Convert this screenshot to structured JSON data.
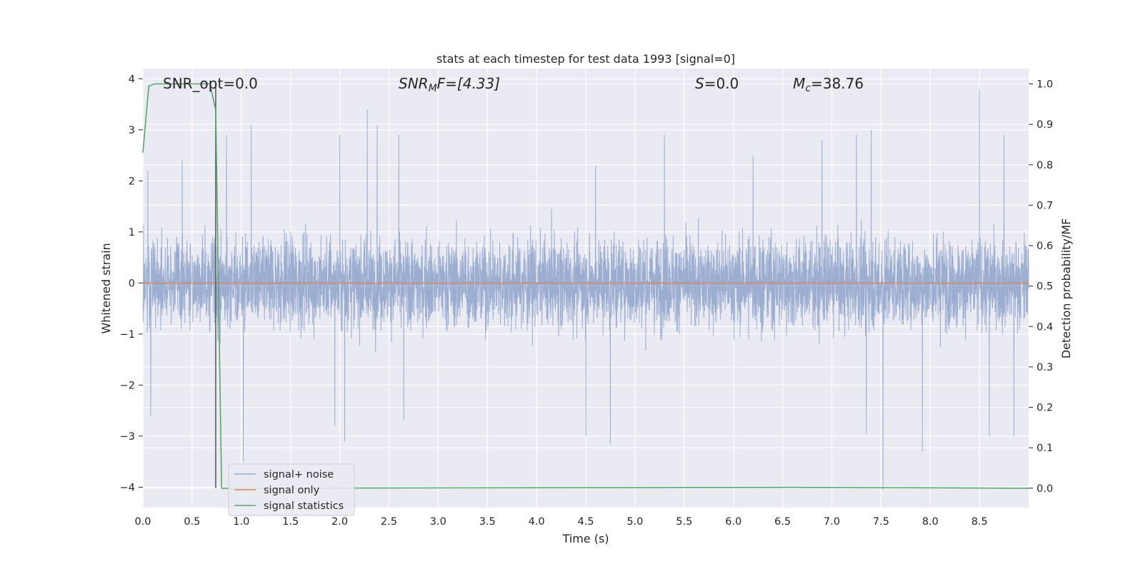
{
  "chart_data": {
    "type": "line",
    "title": "stats at each timestep for test data 1993 [signal=0]",
    "xlabel": "Time (s)",
    "ylabel": "Whitened strain",
    "ylabel_right": "Detection probability/MF",
    "xlim": [
      0.0,
      9.0
    ],
    "ylim": [
      -4.4,
      4.2
    ],
    "ylim_right": [
      -0.048,
      1.038
    ],
    "x_ticks": [
      "0.0",
      "0.5",
      "1.0",
      "1.5",
      "2.0",
      "2.5",
      "3.0",
      "3.5",
      "4.0",
      "4.5",
      "5.0",
      "5.5",
      "6.0",
      "6.5",
      "7.0",
      "7.5",
      "8.0",
      "8.5"
    ],
    "x_tick_values": [
      0.0,
      0.5,
      1.0,
      1.5,
      2.0,
      2.5,
      3.0,
      3.5,
      4.0,
      4.5,
      5.0,
      5.5,
      6.0,
      6.5,
      7.0,
      7.5,
      8.0,
      8.5
    ],
    "y_ticks": [
      "−4",
      "−3",
      "−2",
      "−1",
      "0",
      "1",
      "2",
      "3",
      "4"
    ],
    "y_tick_values": [
      -4,
      -3,
      -2,
      -1,
      0,
      1,
      2,
      3,
      4
    ],
    "y_right_ticks": [
      "0.0",
      "0.1",
      "0.2",
      "0.3",
      "0.4",
      "0.5",
      "0.6",
      "0.7",
      "0.8",
      "0.9",
      "1.0"
    ],
    "y_right_tick_values": [
      0.0,
      0.1,
      0.2,
      0.3,
      0.4,
      0.5,
      0.6,
      0.7,
      0.8,
      0.9,
      1.0
    ],
    "grid": true,
    "legend_position": "lower-left",
    "annotations": {
      "snr_opt": "SNR_opt=0.0",
      "snr_mf_base": "SNR",
      "snr_mf_sub": "M",
      "snr_mf_tail": "F=[4.33]",
      "s_name": "S",
      "s_value": "=0.0",
      "mc_name": "M",
      "mc_sub": "c",
      "mc_value": "=38.76"
    },
    "series": [
      {
        "name": "signal+ noise",
        "color": "#4c72b0",
        "axis": "left",
        "description_values": {
          "x_range": [
            0.0,
            9.0
          ],
          "typical_band": [
            -1.7,
            2.0
          ],
          "peaks": [
            [
              0.05,
              2.2
            ],
            [
              0.4,
              2.4
            ],
            [
              0.85,
              2.9
            ],
            [
              1.1,
              3.1
            ],
            [
              2.0,
              2.9
            ],
            [
              2.28,
              3.4
            ],
            [
              2.38,
              3.1
            ],
            [
              2.6,
              2.9
            ],
            [
              4.6,
              2.3
            ],
            [
              5.3,
              2.9
            ],
            [
              6.2,
              2.5
            ],
            [
              6.9,
              2.8
            ],
            [
              7.25,
              2.9
            ],
            [
              7.4,
              3.0
            ],
            [
              8.5,
              3.8
            ],
            [
              8.75,
              2.9
            ]
          ],
          "troughs": [
            [
              0.08,
              -2.6
            ],
            [
              1.02,
              -3.5
            ],
            [
              1.95,
              -2.8
            ],
            [
              2.05,
              -3.1
            ],
            [
              2.65,
              -2.7
            ],
            [
              4.5,
              -3.0
            ],
            [
              4.75,
              -3.15
            ],
            [
              7.35,
              -2.95
            ],
            [
              7.52,
              -4.05
            ],
            [
              7.92,
              -3.3
            ],
            [
              8.6,
              -3.0
            ],
            [
              8.85,
              -3.0
            ]
          ]
        }
      },
      {
        "name": "signal only",
        "color": "#dd8452",
        "axis": "left",
        "x": [
          0.0,
          9.0
        ],
        "y": [
          0.0,
          0.0
        ]
      },
      {
        "name": "signal statistics",
        "color": "#55a868",
        "axis": "right",
        "x": [
          0.0,
          0.06,
          0.12,
          0.2,
          0.4,
          0.6,
          0.68,
          0.74,
          0.8,
          1.0,
          6.6,
          9.0
        ],
        "y": [
          0.83,
          0.995,
          1.0,
          1.0,
          1.0,
          1.0,
          1.0,
          0.935,
          0.0,
          0.0,
          0.002,
          0.0
        ]
      }
    ],
    "marker_line": {
      "x": 0.74
    }
  }
}
